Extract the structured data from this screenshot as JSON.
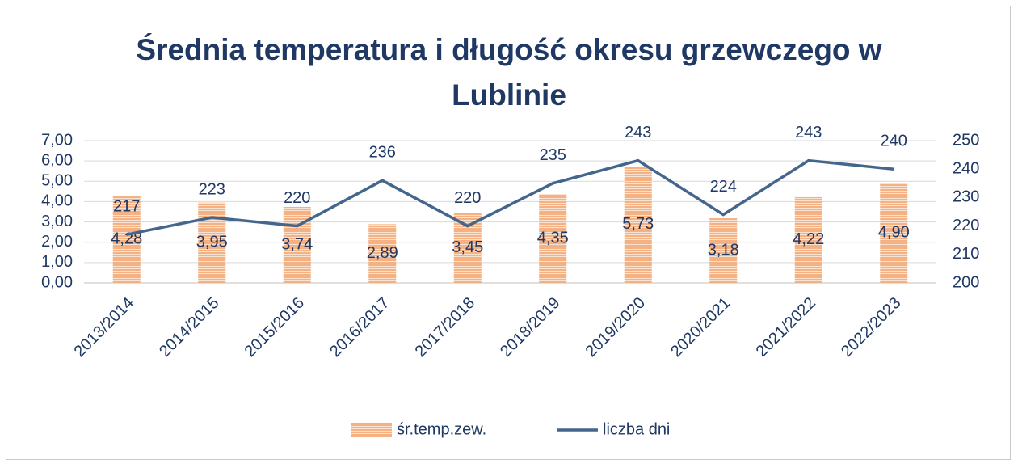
{
  "chart_data": {
    "type": "combo",
    "title": "Średnia temperatura i długość okresu grzewczego w Lublinie",
    "categories": [
      "2013/2014",
      "2014/2015",
      "2015/2016",
      "2016/2017",
      "2017/2018",
      "2018/2019",
      "2019/2020",
      "2020/2021",
      "2021/2022",
      "2022/2023"
    ],
    "series": [
      {
        "name": "śr.temp.zew.",
        "type": "bar",
        "color": "#f4b183",
        "values": [
          4.28,
          3.95,
          3.74,
          2.89,
          3.45,
          4.35,
          5.73,
          3.18,
          4.22,
          4.9
        ],
        "value_labels": [
          "4,28",
          "3,95",
          "3,74",
          "2,89",
          "3,45",
          "4,35",
          "5,73",
          "3,18",
          "4,22",
          "4,90"
        ]
      },
      {
        "name": "liczba dni",
        "type": "line",
        "axis": "y2",
        "color": "#44658c",
        "values": [
          217,
          223,
          220,
          236,
          220,
          235,
          243,
          224,
          243,
          240
        ]
      }
    ],
    "ylim": [
      0,
      7
    ],
    "yticks": [
      {
        "value": 0,
        "label": "0,00"
      },
      {
        "value": 1,
        "label": "1,00"
      },
      {
        "value": 2,
        "label": "2,00"
      },
      {
        "value": 3,
        "label": "3,00"
      },
      {
        "value": 4,
        "label": "4,00"
      },
      {
        "value": 5,
        "label": "5,00"
      },
      {
        "value": 6,
        "label": "6,00"
      },
      {
        "value": 7,
        "label": "7,00"
      }
    ],
    "y2lim": [
      200,
      250
    ],
    "y2ticks": [
      200,
      210,
      220,
      230,
      240,
      250
    ],
    "grid": true,
    "legend": "bottom"
  }
}
